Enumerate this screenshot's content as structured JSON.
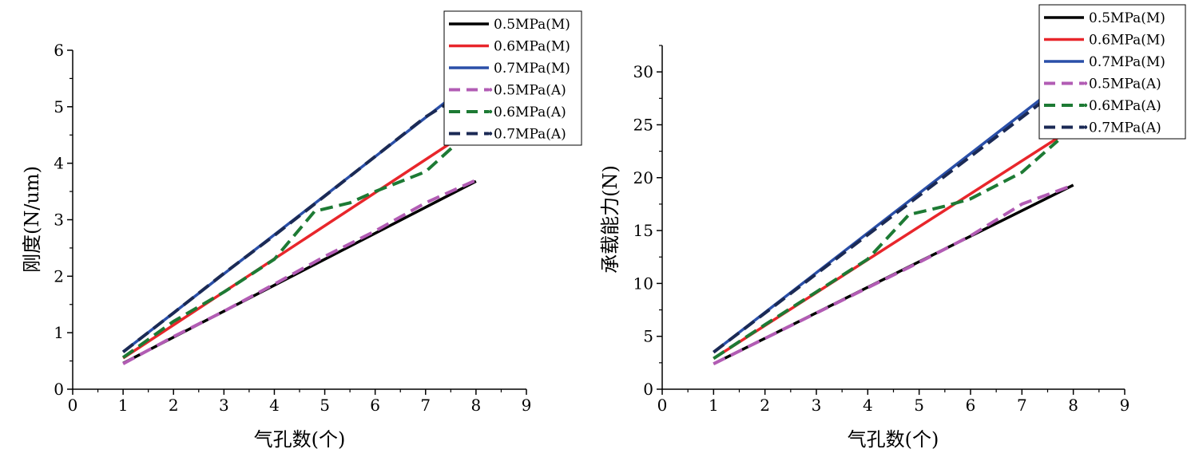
{
  "chart_data": [
    {
      "type": "line",
      "xlabel": "气孔数(个)",
      "ylabel": "刚度(N/um)",
      "xlim": [
        0,
        9
      ],
      "ylim": [
        0,
        6
      ],
      "xticks": [
        "0",
        "1",
        "2",
        "3",
        "4",
        "5",
        "6",
        "7",
        "8",
        "9"
      ],
      "yticks": [
        "0",
        "1",
        "2",
        "3",
        "4",
        "5",
        "6"
      ],
      "legend_position": "top-right",
      "series": [
        {
          "name": "0.5MPa(M)",
          "color": "#000000",
          "style": "solid",
          "x": [
            1,
            8
          ],
          "y": [
            0.46,
            3.68
          ]
        },
        {
          "name": "0.6MPa(M)",
          "color": "#e8262b",
          "style": "solid",
          "x": [
            1,
            8
          ],
          "y": [
            0.55,
            4.65
          ]
        },
        {
          "name": "0.7MPa(M)",
          "color": "#2a4fa8",
          "style": "solid",
          "x": [
            1,
            8
          ],
          "y": [
            0.66,
            5.5
          ]
        },
        {
          "name": "0.5MPa(A)",
          "color": "#b25cb4",
          "style": "dashed",
          "x": [
            1,
            2,
            3,
            4,
            5,
            6,
            7,
            8
          ],
          "y": [
            0.45,
            0.93,
            1.38,
            1.86,
            2.35,
            2.8,
            3.3,
            3.7
          ]
        },
        {
          "name": "0.6MPa(A)",
          "color": "#1d7a34",
          "style": "dashed",
          "x": [
            1,
            2,
            3,
            4,
            4.8,
            5.5,
            6,
            7,
            7.8
          ],
          "y": [
            0.56,
            1.2,
            1.72,
            2.3,
            3.15,
            3.3,
            3.5,
            3.85,
            4.5
          ]
        },
        {
          "name": "0.7MPa(A)",
          "color": "#1b2a55",
          "style": "dashed",
          "x": [
            1,
            2,
            3,
            4,
            5,
            6,
            7,
            7.5
          ],
          "y": [
            0.66,
            1.35,
            2.05,
            2.72,
            3.42,
            4.12,
            4.82,
            5.1
          ]
        }
      ]
    },
    {
      "type": "line",
      "xlabel": "气孔数(个)",
      "ylabel": "承载能力(N)",
      "xlim": [
        0,
        9
      ],
      "ylim": [
        0,
        32.5
      ],
      "xticks": [
        "0",
        "1",
        "2",
        "3",
        "4",
        "5",
        "6",
        "7",
        "8",
        "9"
      ],
      "yticks": [
        "0",
        "5",
        "10",
        "15",
        "20",
        "25",
        "30"
      ],
      "legend_position": "top-right",
      "series": [
        {
          "name": "0.5MPa(M)",
          "color": "#000000",
          "style": "solid",
          "x": [
            1,
            8
          ],
          "y": [
            2.4,
            19.3
          ]
        },
        {
          "name": "0.6MPa(M)",
          "color": "#e8262b",
          "style": "solid",
          "x": [
            1,
            8
          ],
          "y": [
            2.9,
            24.7
          ]
        },
        {
          "name": "0.7MPa(M)",
          "color": "#2a4fa8",
          "style": "solid",
          "x": [
            1,
            8
          ],
          "y": [
            3.5,
            29.8
          ]
        },
        {
          "name": "0.5MPa(A)",
          "color": "#b25cb4",
          "style": "dashed",
          "x": [
            1,
            2,
            3,
            4,
            5,
            6,
            7,
            8
          ],
          "y": [
            2.4,
            4.8,
            7.2,
            9.6,
            12.0,
            14.5,
            17.5,
            19.3
          ]
        },
        {
          "name": "0.6MPa(A)",
          "color": "#1d7a34",
          "style": "dashed",
          "x": [
            1,
            2,
            3,
            4,
            4.8,
            5.5,
            6,
            7,
            7.7
          ],
          "y": [
            2.9,
            6.1,
            9.2,
            12.3,
            16.5,
            17.3,
            18.0,
            20.5,
            23.5
          ]
        },
        {
          "name": "0.7MPa(A)",
          "color": "#1b2a55",
          "style": "dashed",
          "x": [
            1,
            2,
            3,
            4,
            5,
            6,
            7,
            7.4
          ],
          "y": [
            3.5,
            7.2,
            10.9,
            14.6,
            18.3,
            22.0,
            25.7,
            27.2
          ]
        }
      ]
    }
  ]
}
